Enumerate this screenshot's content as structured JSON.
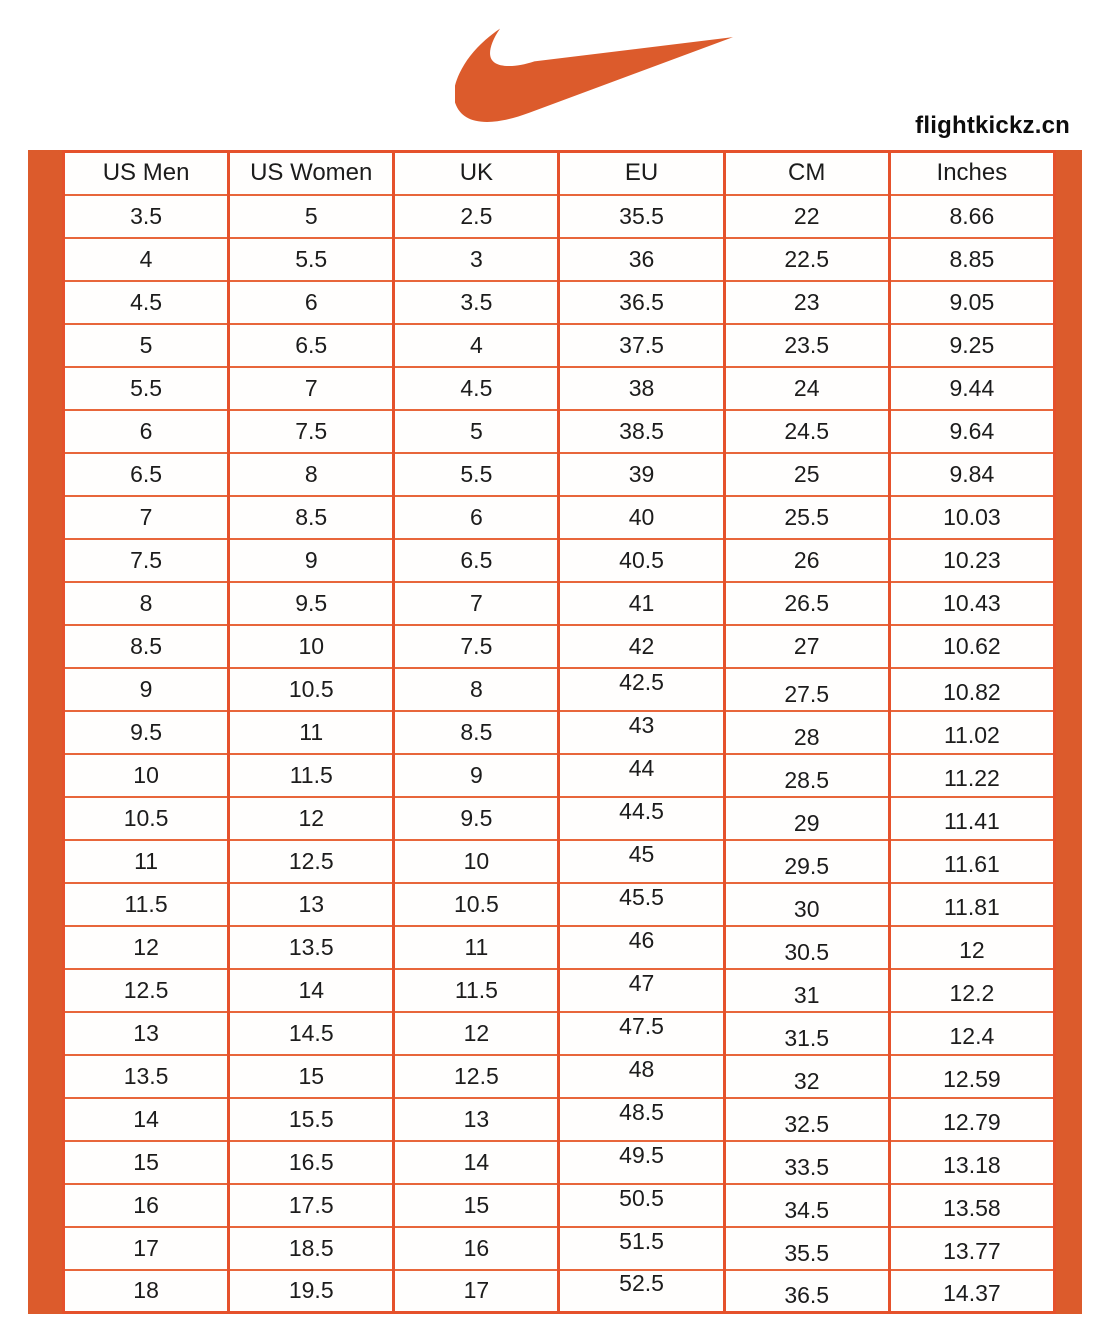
{
  "brand": {
    "logo_icon": "nike-swoosh-icon",
    "site": "flightkickz.cn"
  },
  "colors": {
    "accent_orange": "#DC5B2C",
    "grid_line": "#E5512B",
    "grid_line_horizontal": "#E8663B",
    "text": "#1c1c1c"
  },
  "chart_data": {
    "type": "table",
    "title": "Nike shoe size conversion chart",
    "columns": [
      "US Men",
      "US Women",
      "UK",
      "EU",
      "CM",
      "Inches"
    ],
    "rows": [
      [
        "3.5",
        "5",
        "2.5",
        "35.5",
        "22",
        "8.66"
      ],
      [
        "4",
        "5.5",
        "3",
        "36",
        "22.5",
        "8.85"
      ],
      [
        "4.5",
        "6",
        "3.5",
        "36.5",
        "23",
        "9.05"
      ],
      [
        "5",
        "6.5",
        "4",
        "37.5",
        "23.5",
        "9.25"
      ],
      [
        "5.5",
        "7",
        "4.5",
        "38",
        "24",
        "9.44"
      ],
      [
        "6",
        "7.5",
        "5",
        "38.5",
        "24.5",
        "9.64"
      ],
      [
        "6.5",
        "8",
        "5.5",
        "39",
        "25",
        "9.84"
      ],
      [
        "7",
        "8.5",
        "6",
        "40",
        "25.5",
        "10.03"
      ],
      [
        "7.5",
        "9",
        "6.5",
        "40.5",
        "26",
        "10.23"
      ],
      [
        "8",
        "9.5",
        "7",
        "41",
        "26.5",
        "10.43"
      ],
      [
        "8.5",
        "10",
        "7.5",
        "42",
        "27",
        "10.62"
      ],
      [
        "9",
        "10.5",
        "8",
        "42.5",
        "27.5",
        "10.82"
      ],
      [
        "9.5",
        "11",
        "8.5",
        "43",
        "28",
        "11.02"
      ],
      [
        "10",
        "11.5",
        "9",
        "44",
        "28.5",
        "11.22"
      ],
      [
        "10.5",
        "12",
        "9.5",
        "44.5",
        "29",
        "11.41"
      ],
      [
        "11",
        "12.5",
        "10",
        "45",
        "29.5",
        "11.61"
      ],
      [
        "11.5",
        "13",
        "10.5",
        "45.5",
        "30",
        "11.81"
      ],
      [
        "12",
        "13.5",
        "11",
        "46",
        "30.5",
        "12"
      ],
      [
        "12.5",
        "14",
        "11.5",
        "47",
        "31",
        "12.2"
      ],
      [
        "13",
        "14.5",
        "12",
        "47.5",
        "31.5",
        "12.4"
      ],
      [
        "13.5",
        "15",
        "12.5",
        "48",
        "32",
        "12.59"
      ],
      [
        "14",
        "15.5",
        "13",
        "48.5",
        "32.5",
        "12.79"
      ],
      [
        "15",
        "16.5",
        "14",
        "49.5",
        "33.5",
        "13.18"
      ],
      [
        "16",
        "17.5",
        "15",
        "50.5",
        "34.5",
        "13.58"
      ],
      [
        "17",
        "18.5",
        "16",
        "51.5",
        "35.5",
        "13.77"
      ],
      [
        "18",
        "19.5",
        "17",
        "52.5",
        "36.5",
        "14.37"
      ]
    ],
    "layout_hints": {
      "grid": true,
      "header_row": true,
      "accent_bars": "left-and-right-vertical-orange"
    }
  }
}
